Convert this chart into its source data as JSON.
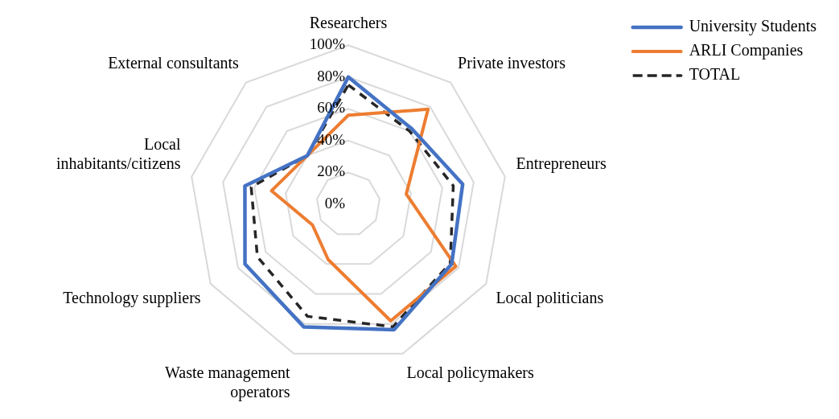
{
  "chart_data": {
    "type": "radar",
    "categories": [
      "Researchers",
      "Private investors",
      "Entrepreneurs",
      "Local politicians",
      "Local policymakers",
      "Waste management operators",
      "Technology suppliers",
      "Local inhabitants/citizens",
      "External consultants"
    ],
    "series": [
      {
        "name": "University Students",
        "color": "#4472c4",
        "values": [
          80,
          62,
          73,
          75,
          84,
          82,
          75,
          66,
          40
        ]
      },
      {
        "name": "ARLI Companies",
        "color": "#ed7d31",
        "values": [
          56,
          78,
          37,
          78,
          78,
          37,
          26,
          49,
          40
        ]
      },
      {
        "name": "TOTAL",
        "color": "#262626",
        "line_style": "dashed",
        "values": [
          75,
          60,
          67,
          74,
          82,
          75,
          66,
          62,
          40
        ]
      }
    ],
    "ylim": [
      0,
      100
    ],
    "yticks": [
      {
        "value": 0,
        "label": "0%"
      },
      {
        "value": 20,
        "label": "20%"
      },
      {
        "value": 40,
        "label": "40%"
      },
      {
        "value": 60,
        "label": "60%"
      },
      {
        "value": 80,
        "label": "80%"
      },
      {
        "value": 100,
        "label": "100%"
      }
    ],
    "grid": true,
    "legend": "top right",
    "marker": "none"
  }
}
